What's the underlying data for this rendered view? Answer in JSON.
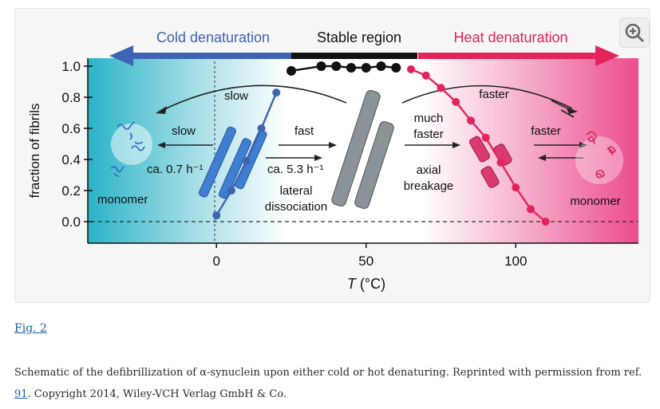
{
  "figure": {
    "regions": {
      "cold": "Cold denaturation",
      "stable": "Stable region",
      "heat": "Heat denaturation"
    },
    "colors": {
      "cold": "#3f63b3",
      "stable": "#111111",
      "heat": "#e3245a",
      "cold_fill": "#2bb3c6",
      "heat_fill": "#ec4c8c"
    },
    "annotations": {
      "slow_top": "slow",
      "slow_left": "slow",
      "rate_cold": "ca. 0.7 h⁻¹",
      "monomer_left": "monomer",
      "fast": "fast",
      "rate_fast": "ca. 5.3 h⁻¹",
      "lateral_1": "lateral",
      "lateral_2": "dissociation",
      "much_1": "much",
      "much_2": "faster",
      "axial_1": "axial",
      "axial_2": "breakage",
      "faster_top": "faster",
      "faster_right": "faster",
      "monomer_right": "monomer"
    }
  },
  "chart_data": {
    "type": "line",
    "ylabel": "fraction of fibrils",
    "xlabel": "T (°C)",
    "xlabel_var": "T",
    "xlabel_unit": " (°C)",
    "xlim": [
      -43,
      141
    ],
    "ylim": [
      0,
      1
    ],
    "x_ticks": [
      "0",
      "50",
      "100"
    ],
    "x_tick_values": [
      0,
      50,
      100
    ],
    "y_ticks": [
      "0.0",
      "0.2",
      "0.4",
      "0.6",
      "0.8",
      "1.0"
    ],
    "y_tick_values": [
      0,
      0.2,
      0.4,
      0.6,
      0.8,
      1.0
    ],
    "grid": false,
    "series": [
      {
        "segment": "cold",
        "x": [
          0,
          5,
          10,
          15,
          20
        ],
        "y": [
          0.04,
          0.2,
          0.39,
          0.6,
          0.83
        ]
      },
      {
        "segment": "stable",
        "x": [
          25,
          35,
          40,
          45,
          50,
          55,
          60
        ],
        "y": [
          0.97,
          1.0,
          1.0,
          0.99,
          0.99,
          1.0,
          0.99
        ]
      },
      {
        "segment": "heat",
        "x": [
          65,
          70,
          75,
          80,
          85,
          90,
          95,
          100,
          105,
          110
        ],
        "y": [
          0.98,
          0.94,
          0.86,
          0.77,
          0.65,
          0.54,
          0.38,
          0.22,
          0.08,
          0.0
        ]
      }
    ]
  },
  "caption": {
    "fig_label": "Fig. 2",
    "text_before": "Schematic of the defibrillization of α-synuclein upon either cold or hot denaturing. Reprinted with permission from ref. ",
    "ref": "91",
    "text_after": ". Copyright 2014, Wiley-VCH Verlag GmbH & Co."
  },
  "zoom_icon": "zoom-in-icon"
}
